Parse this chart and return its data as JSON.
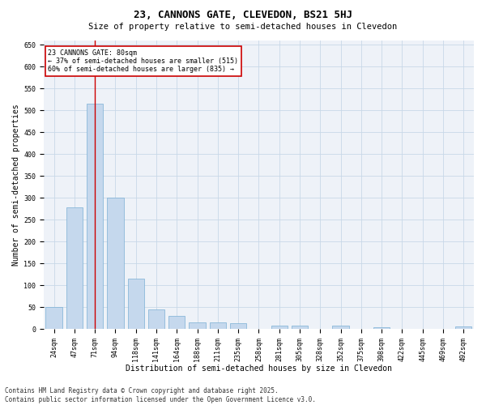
{
  "title1": "23, CANNONS GATE, CLEVEDON, BS21 5HJ",
  "title2": "Size of property relative to semi-detached houses in Clevedon",
  "xlabel": "Distribution of semi-detached houses by size in Clevedon",
  "ylabel": "Number of semi-detached properties",
  "categories": [
    "24sqm",
    "47sqm",
    "71sqm",
    "94sqm",
    "118sqm",
    "141sqm",
    "164sqm",
    "188sqm",
    "211sqm",
    "235sqm",
    "258sqm",
    "281sqm",
    "305sqm",
    "328sqm",
    "352sqm",
    "375sqm",
    "398sqm",
    "422sqm",
    "445sqm",
    "469sqm",
    "492sqm"
  ],
  "values": [
    50,
    278,
    515,
    300,
    115,
    45,
    30,
    15,
    15,
    13,
    0,
    8,
    8,
    0,
    8,
    0,
    3,
    0,
    0,
    0,
    5
  ],
  "bar_color": "#c5d8ed",
  "bar_edge_color": "#7bafd4",
  "red_line_index": 2,
  "annotation_line1": "23 CANNONS GATE: 80sqm",
  "annotation_line2": "← 37% of semi-detached houses are smaller (515)",
  "annotation_line3": "60% of semi-detached houses are larger (835) →",
  "annotation_box_color": "#ffffff",
  "annotation_box_edge": "#cc0000",
  "ylim": [
    0,
    660
  ],
  "yticks": [
    0,
    50,
    100,
    150,
    200,
    250,
    300,
    350,
    400,
    450,
    500,
    550,
    600,
    650
  ],
  "grid_color": "#c8d8e8",
  "bg_color": "#eef2f8",
  "footer1": "Contains HM Land Registry data © Crown copyright and database right 2025.",
  "footer2": "Contains public sector information licensed under the Open Government Licence v3.0.",
  "title1_fontsize": 9,
  "title2_fontsize": 7.5,
  "tick_fontsize": 6,
  "label_fontsize": 7,
  "annotation_fontsize": 6,
  "footer_fontsize": 5.5
}
